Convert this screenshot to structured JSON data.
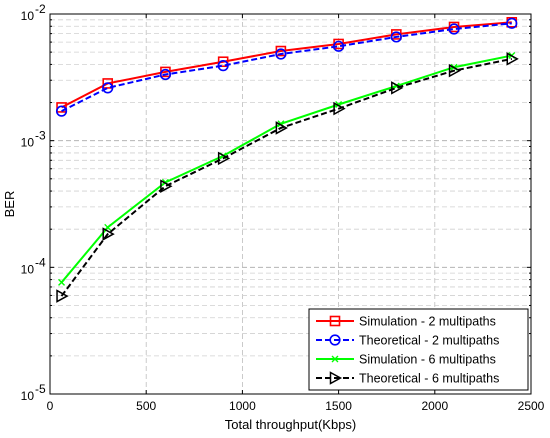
{
  "chart_data": {
    "type": "line",
    "xlabel": "Total throughput(Kbps)",
    "ylabel": "BER",
    "xlim": [
      0,
      2500
    ],
    "ylim": [
      1e-05,
      0.01
    ],
    "yscale": "log",
    "grid": true,
    "legend_position": "bottom-right",
    "x_ticks": [
      0,
      500,
      1000,
      1500,
      2000,
      2500
    ],
    "x_tick_labels": [
      "0",
      "500",
      "1000",
      "1500",
      "2000",
      "2500"
    ],
    "y_tick_labels": [
      {
        "value": 0.01,
        "base": "10",
        "exp": "-2"
      },
      {
        "value": 0.001,
        "base": "10",
        "exp": "-3"
      },
      {
        "value": 0.0001,
        "base": "10",
        "exp": "-4"
      },
      {
        "value": 1e-05,
        "base": "10",
        "exp": "-5"
      }
    ],
    "x": [
      60,
      300,
      600,
      900,
      1200,
      1500,
      1800,
      2100,
      2400
    ],
    "series": [
      {
        "name": "Simulation - 2 multipaths",
        "color": "#ff0000",
        "dash": "solid",
        "marker": "square",
        "values": [
          0.00183,
          0.00283,
          0.00349,
          0.0042,
          0.0051,
          0.0058,
          0.0069,
          0.0079,
          0.0086
        ]
      },
      {
        "name": "Theoretical - 2 multipaths",
        "color": "#0000ff",
        "dash": "dashed",
        "marker": "circle",
        "values": [
          0.00171,
          0.00261,
          0.00333,
          0.00391,
          0.00483,
          0.00556,
          0.00659,
          0.00761,
          0.00844
        ]
      },
      {
        "name": "Simulation - 6 multipaths",
        "color": "#00ff00",
        "dash": "solid",
        "marker": "x",
        "values": [
          7.6e-05,
          0.000207,
          0.000469,
          0.000758,
          0.00136,
          0.00193,
          0.0027,
          0.0038,
          0.0047
        ]
      },
      {
        "name": "Theoretical - 6 multipaths",
        "color": "#000000",
        "dash": "dashed",
        "marker": "triangle-right",
        "values": [
          5.93e-05,
          0.000183,
          0.000437,
          0.000725,
          0.00126,
          0.00179,
          0.00261,
          0.00357,
          0.00442
        ]
      }
    ]
  }
}
